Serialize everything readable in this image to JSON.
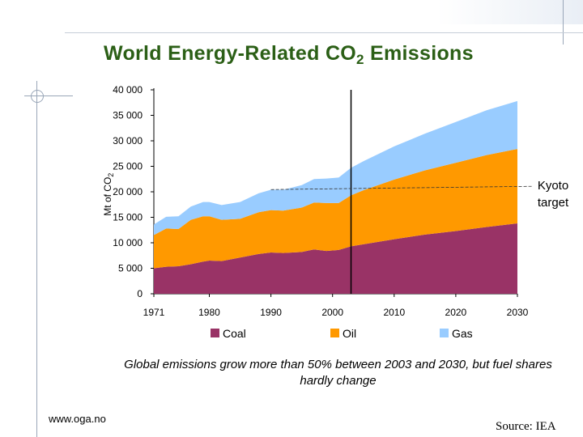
{
  "title": {
    "main": "World Energy-Related CO",
    "sub": "2",
    "rest": " Emissions"
  },
  "ylabel": {
    "main": "Mt of CO",
    "sub": "2"
  },
  "caption": "Global emissions grow more than 50% between 2003 and 2030, but fuel shares hardly change",
  "footer": {
    "website": "www.oga.no",
    "source": "Source: IEA"
  },
  "colors": {
    "coal": "#993366",
    "oil": "#FF9900",
    "gas": "#99CCFF",
    "title": "#2b5f16"
  },
  "chart_data": {
    "type": "area",
    "stacked": true,
    "title": "World Energy-Related CO2 Emissions",
    "xlabel": "",
    "ylabel": "Mt of CO2",
    "xlim": [
      1971,
      2030
    ],
    "ylim": [
      0,
      40000
    ],
    "xticks": [
      "1971",
      "1980",
      "1990",
      "2000",
      "2010",
      "2020",
      "2030"
    ],
    "yticks": [
      "0",
      "5 000",
      "10 000",
      "15 000",
      "20 000",
      "25 000",
      "30 000",
      "35 000",
      "40 000"
    ],
    "x": [
      1971,
      1973,
      1975,
      1977,
      1979,
      1980,
      1982,
      1985,
      1988,
      1990,
      1992,
      1995,
      1997,
      1999,
      2001,
      2003,
      2005,
      2010,
      2015,
      2020,
      2025,
      2030
    ],
    "series": [
      {
        "name": "Coal",
        "values": [
          5000,
          5300,
          5400,
          5800,
          6300,
          6500,
          6400,
          7100,
          7800,
          8100,
          8000,
          8200,
          8700,
          8400,
          8600,
          9300,
          9700,
          10700,
          11600,
          12300,
          13100,
          13800
        ]
      },
      {
        "name": "Oil",
        "values": [
          6500,
          7500,
          7300,
          8700,
          8900,
          8700,
          8100,
          7600,
          8200,
          8300,
          8300,
          8700,
          9200,
          9400,
          9200,
          10000,
          10600,
          11700,
          12600,
          13400,
          14100,
          14600
        ]
      },
      {
        "name": "Gas",
        "values": [
          2100,
          2300,
          2500,
          2600,
          2800,
          2800,
          2900,
          3300,
          3700,
          4000,
          4100,
          4400,
          4600,
          4800,
          5000,
          5400,
          5700,
          6500,
          7200,
          8000,
          8800,
          9400
        ]
      }
    ],
    "legend": [
      "Coal",
      "Oil",
      "Gas"
    ],
    "legend_position": "bottom",
    "vline_year": 2003,
    "annotation": {
      "label_line1": "Kyoto",
      "label_line2": "target",
      "value": 20600
    }
  }
}
